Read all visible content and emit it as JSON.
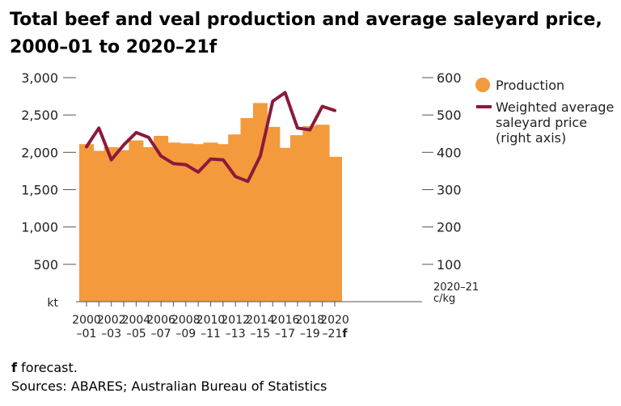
{
  "chart_data": {
    "type": "bar",
    "title": "Total beef and veal production and average saleyard price, 2000–01 to 2020–21f",
    "categories_top": [
      "2000",
      "",
      "2002",
      "",
      "2004",
      "",
      "2006",
      "",
      "2008",
      "",
      "2010",
      "",
      "2012",
      "",
      "2014",
      "",
      "2016",
      "",
      "2018",
      "",
      "2020"
    ],
    "categories_bottom": [
      "–01",
      "",
      "–03",
      "",
      "–05",
      "",
      "–07",
      "",
      "–09",
      "",
      "–11",
      "",
      "–13",
      "",
      "–15",
      "",
      "–17",
      "",
      "–19",
      "",
      "–21"
    ],
    "forecast_suffix": "f",
    "series": [
      {
        "name": "Production",
        "type": "bar",
        "axis": "left",
        "color": "#f39a3d",
        "values": [
          2110,
          2020,
          2070,
          2030,
          2160,
          2070,
          2220,
          2130,
          2120,
          2110,
          2130,
          2110,
          2240,
          2460,
          2660,
          2340,
          2060,
          2230,
          2350,
          2370,
          1940
        ]
      },
      {
        "name": "Weighted average saleyard price (right axis)",
        "type": "line",
        "axis": "right",
        "color": "#8b1a3a",
        "values": [
          415,
          465,
          380,
          420,
          453,
          440,
          390,
          370,
          367,
          347,
          382,
          380,
          335,
          322,
          390,
          537,
          560,
          465,
          460,
          523,
          512
        ]
      }
    ],
    "legend": {
      "production": "Production",
      "price_lines": [
        "Weighted average",
        "saleyard price",
        "(right axis)"
      ],
      "placement": "right"
    },
    "left_axis": {
      "unit": "kt",
      "ylim": [
        0,
        3000
      ],
      "ticks": [
        500,
        1000,
        1500,
        2000,
        2500,
        3000
      ],
      "tick_labels": [
        "500",
        "1,000",
        "1,500",
        "2,000",
        "2,500",
        "3,000"
      ]
    },
    "right_axis": {
      "unit_lines": [
        "2020–21",
        "c/kg"
      ],
      "ylim": [
        0,
        600
      ],
      "ticks": [
        100,
        200,
        300,
        400,
        500,
        600
      ],
      "tick_labels": [
        "100",
        "200",
        "300",
        "400",
        "500",
        "600"
      ]
    },
    "grid": false
  },
  "footnotes": {
    "forecast_marker": "f",
    "forecast_text": " forecast.",
    "sources": "Sources: ABARES; Australian Bureau of Statistics"
  }
}
